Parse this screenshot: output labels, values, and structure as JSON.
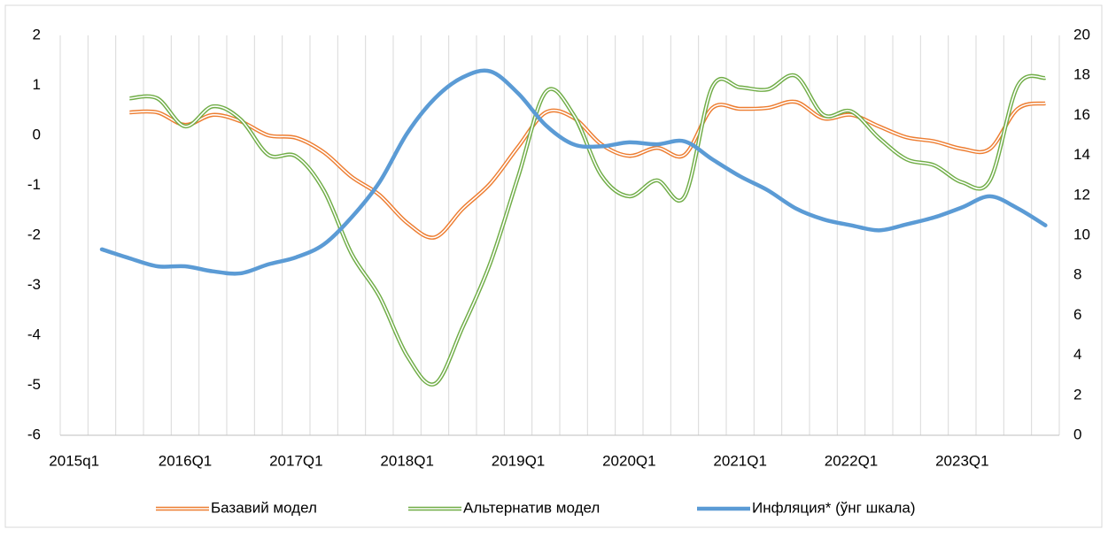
{
  "chart_data": {
    "type": "line",
    "categories": [
      "2015q1",
      null,
      null,
      null,
      "2016Q1",
      null,
      null,
      null,
      "2017Q1",
      null,
      null,
      null,
      "2018Q1",
      null,
      null,
      null,
      "2019Q1",
      null,
      null,
      null,
      "2020Q1",
      null,
      null,
      null,
      "2021Q1",
      null,
      null,
      null,
      "2022Q1",
      null,
      null,
      null,
      "2023Q1",
      null,
      null,
      null
    ],
    "series": [
      {
        "name": "Базавий модел",
        "color": "#ed7d31",
        "style": "double",
        "axis": "y",
        "values": [
          null,
          null,
          0.46,
          0.46,
          0.21,
          0.41,
          0.28,
          0.0,
          -0.05,
          -0.34,
          -0.83,
          -1.19,
          -1.75,
          -2.04,
          -1.47,
          -0.96,
          -0.23,
          0.46,
          0.35,
          -0.18,
          -0.41,
          -0.25,
          -0.39,
          0.55,
          0.53,
          0.55,
          0.67,
          0.34,
          0.41,
          0.18,
          -0.04,
          -0.12,
          -0.27,
          -0.27,
          0.53,
          0.64
        ]
      },
      {
        "name": "Альтернатив модел",
        "color": "#70ad47",
        "style": "double",
        "axis": "y",
        "values": [
          null,
          null,
          0.74,
          0.74,
          0.18,
          0.58,
          0.32,
          -0.39,
          -0.42,
          -1.1,
          -2.37,
          -3.22,
          -4.41,
          -4.97,
          -3.84,
          -2.55,
          -0.83,
          0.87,
          0.41,
          -0.8,
          -1.22,
          -0.9,
          -1.22,
          0.97,
          0.96,
          0.92,
          1.19,
          0.41,
          0.48,
          -0.05,
          -0.48,
          -0.6,
          -0.94,
          -0.9,
          0.99,
          1.15
        ]
      },
      {
        "name": "Инфляция* (ўнг шкала)",
        "color": "#5b9bd5",
        "style": "solid",
        "axis": "y2",
        "values": [
          null,
          9.3,
          8.85,
          8.45,
          8.45,
          8.2,
          8.1,
          8.55,
          8.9,
          9.55,
          10.9,
          12.65,
          15.1,
          16.85,
          17.9,
          18.2,
          17.1,
          15.5,
          14.55,
          14.45,
          14.65,
          14.55,
          14.7,
          13.8,
          12.95,
          12.25,
          11.35,
          10.8,
          10.5,
          10.25,
          10.55,
          10.9,
          11.4,
          11.95,
          11.35,
          10.5
        ]
      }
    ],
    "ylim": [
      -6,
      2
    ],
    "yticks": [
      -6,
      -5,
      -4,
      -3,
      -2,
      -1,
      0,
      1,
      2
    ],
    "y2lim": [
      0,
      20
    ],
    "y2ticks": [
      0,
      2,
      4,
      6,
      8,
      10,
      12,
      14,
      16,
      18,
      20
    ],
    "legend": "bottom"
  }
}
